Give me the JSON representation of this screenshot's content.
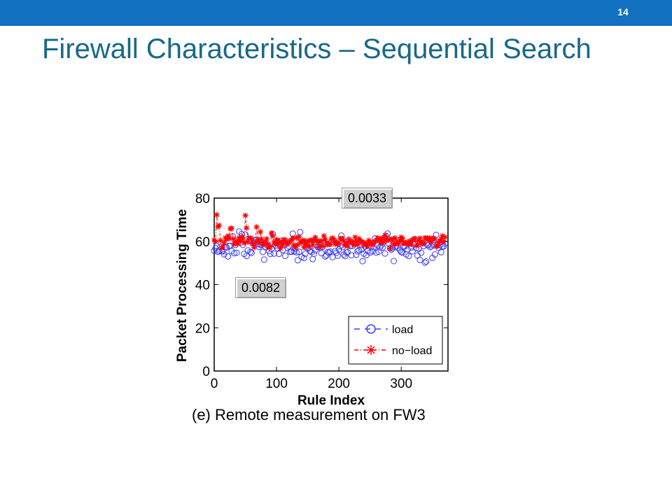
{
  "slide": {
    "page_number": "14",
    "title": "Firewall Characteristics – Sequential Search"
  },
  "colors": {
    "bar": "#1170c0",
    "title": "#17688a",
    "load": "#3b3bff",
    "no_load": "#ff0000"
  },
  "callouts": {
    "top": "0.0033",
    "left": "0.0082"
  },
  "chart_data": {
    "type": "scatter",
    "caption": "(e) Remote measurement on FW3",
    "xlabel": "Rule Index",
    "ylabel": "Packet Processing Time",
    "xlim": [
      0,
      375
    ],
    "ylim": [
      0,
      80
    ],
    "xticks": [
      0,
      100,
      200,
      300
    ],
    "yticks": [
      0,
      20,
      40,
      60,
      80
    ],
    "grid": false,
    "legend_position": "lower-right",
    "series": [
      {
        "name": "load",
        "marker": "circle",
        "line": "dashed",
        "mean": 57,
        "spread": 3,
        "values_range": [
          50,
          65
        ]
      },
      {
        "name": "no−load",
        "marker": "star",
        "line": "dash-dot",
        "mean": 60,
        "spread": 2,
        "values_range": [
          55,
          74
        ]
      }
    ]
  }
}
